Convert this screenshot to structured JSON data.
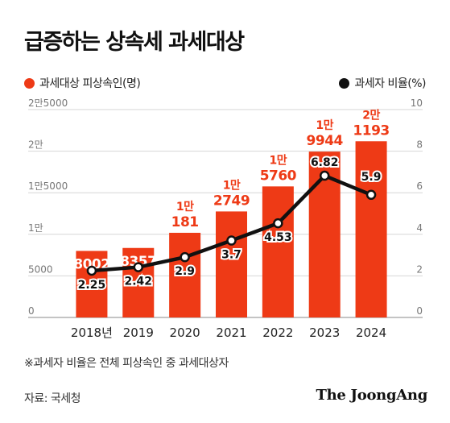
{
  "chart_data": {
    "type": "bar",
    "title": "급증하는 상속세 과세대상",
    "categories": [
      "2018년",
      "2019",
      "2020",
      "2021",
      "2022",
      "2023",
      "2024"
    ],
    "series": [
      {
        "name": "과세대상 피상속인(명)",
        "axis": "left",
        "kind": "bar",
        "values": [
          8002,
          8357,
          10181,
          12749,
          15760,
          19944,
          21193
        ],
        "labels": [
          [
            "8002"
          ],
          [
            "8357"
          ],
          [
            "1만",
            "181"
          ],
          [
            "1만",
            "2749"
          ],
          [
            "1만",
            "5760"
          ],
          [
            "1만",
            "9944"
          ],
          [
            "2만",
            "1193"
          ]
        ],
        "color": "#ee3a16"
      },
      {
        "name": "과세자 비율(%)",
        "axis": "right",
        "kind": "line",
        "values": [
          2.25,
          2.42,
          2.9,
          3.7,
          4.53,
          6.82,
          5.9
        ],
        "labels": [
          "2.25",
          "2.42",
          "2.9",
          "3.7",
          "4.53",
          "6.82",
          "5.9"
        ],
        "color": "#111111"
      }
    ],
    "y_left": {
      "ylim": [
        0,
        25000
      ],
      "ticks": [
        0,
        5000,
        10000,
        15000,
        20000,
        25000
      ],
      "tick_labels": [
        "0",
        "5000",
        "1만",
        "1만5000",
        "2만",
        "2만5000"
      ]
    },
    "y_right": {
      "ylim": [
        0,
        10
      ],
      "ticks": [
        0,
        2,
        4,
        6,
        8,
        10
      ],
      "tick_labels": [
        "0",
        "2",
        "4",
        "6",
        "8",
        "10"
      ]
    },
    "grid": true,
    "legend": "top"
  },
  "legend_left": "과세대상 피상속인(명)",
  "legend_right": "과세자 비율(%)",
  "footnote": "※과세자 비율은 전체 피상속인 중 과세대상자",
  "source": "자료: 국세청",
  "brand": "The JoongAng",
  "colors": {
    "bar": "#ee3a16",
    "line": "#111111",
    "grid": "#d6d6d6"
  }
}
